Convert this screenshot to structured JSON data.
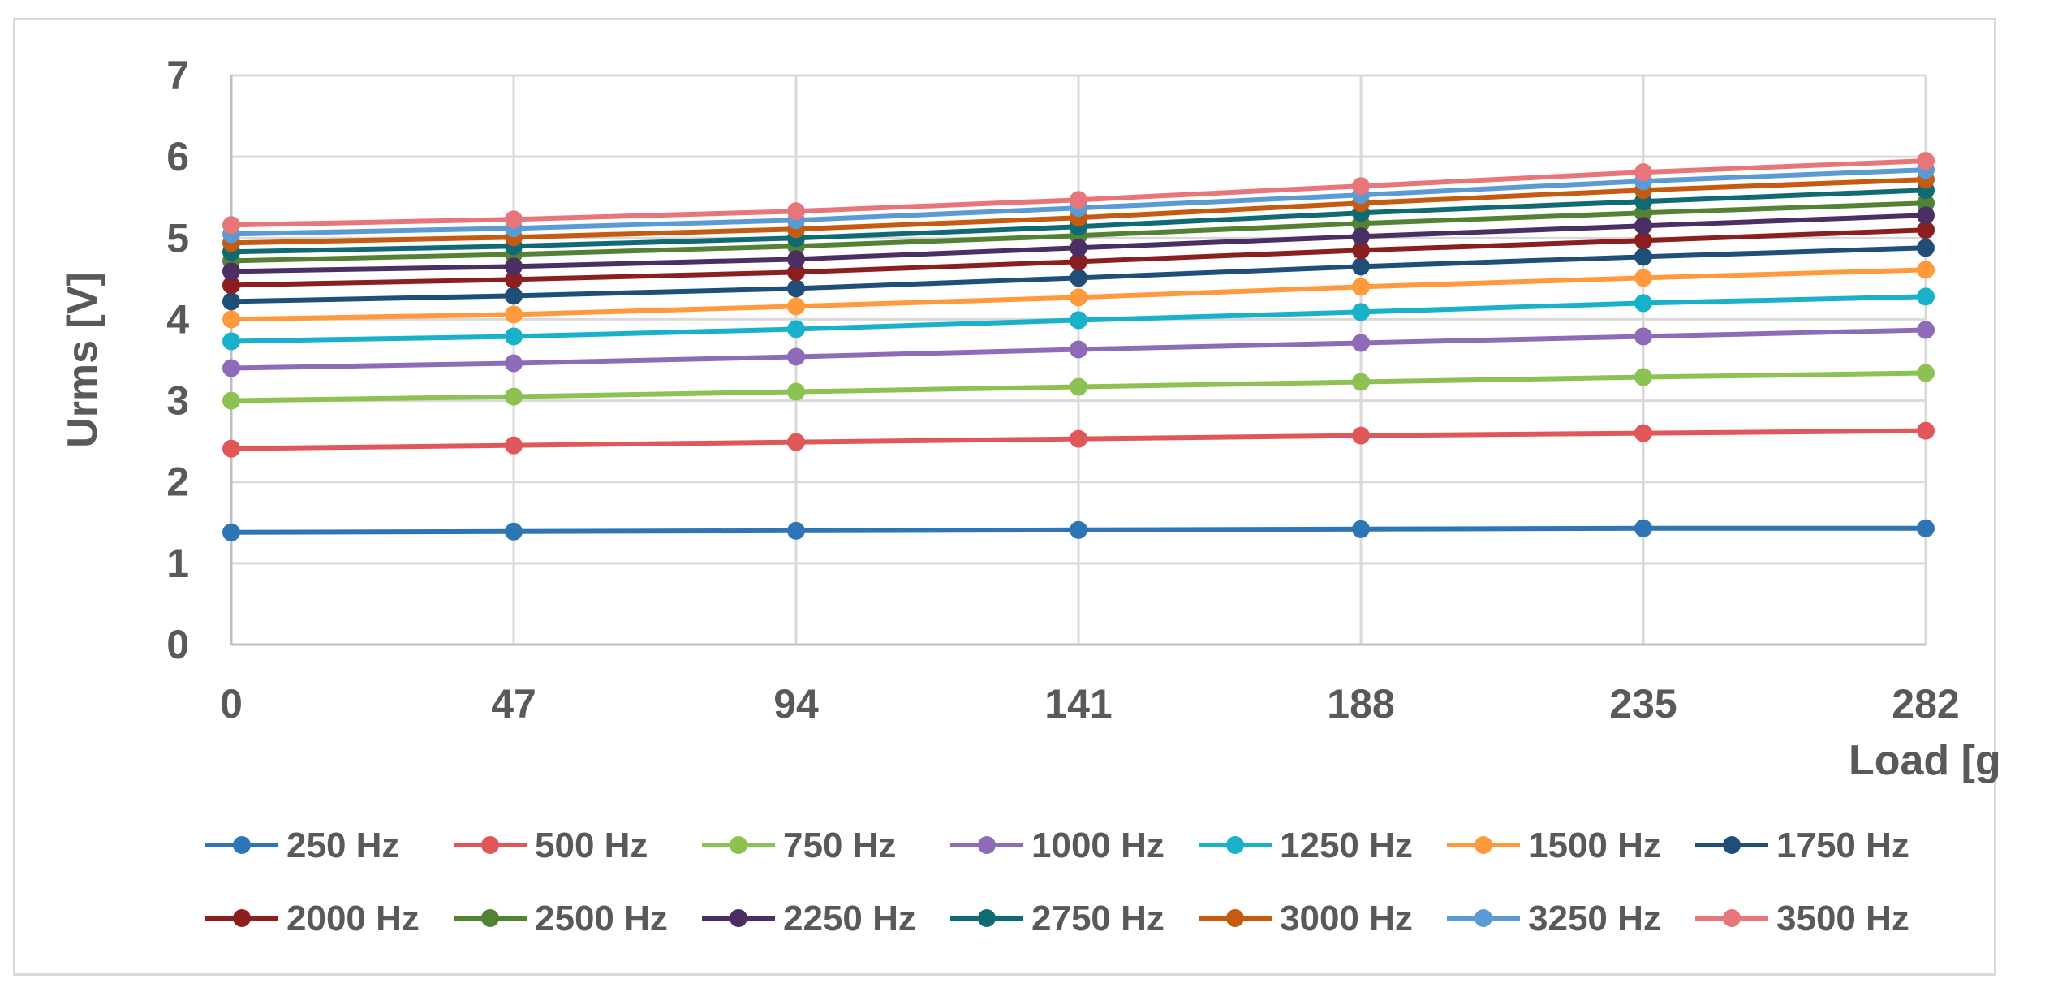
{
  "chart_data": {
    "type": "line",
    "title": "",
    "xlabel": "Load [g]",
    "ylabel": "Urms [V]",
    "categories": [
      "0",
      "47",
      "94",
      "141",
      "188",
      "235",
      "282"
    ],
    "ylim": [
      0,
      7
    ],
    "yticks": [
      "0",
      "1",
      "2",
      "3",
      "4",
      "5",
      "6",
      "7"
    ],
    "grid": true,
    "legend_position": "bottom",
    "series": [
      {
        "name": "250 Hz",
        "color": "#2E75B6",
        "values": [
          1.38,
          1.39,
          1.4,
          1.41,
          1.42,
          1.43,
          1.43
        ]
      },
      {
        "name": "500 Hz",
        "color": "#E15759",
        "values": [
          2.41,
          2.45,
          2.49,
          2.53,
          2.57,
          2.6,
          2.63
        ]
      },
      {
        "name": "750 Hz",
        "color": "#8DC152",
        "values": [
          3.0,
          3.05,
          3.11,
          3.17,
          3.23,
          3.29,
          3.34
        ]
      },
      {
        "name": "1000 Hz",
        "color": "#8E6BB8",
        "values": [
          3.4,
          3.46,
          3.54,
          3.63,
          3.71,
          3.79,
          3.87
        ]
      },
      {
        "name": "1250 Hz",
        "color": "#17B2C9",
        "values": [
          3.73,
          3.79,
          3.88,
          3.99,
          4.09,
          4.2,
          4.28
        ]
      },
      {
        "name": "1500 Hz",
        "color": "#FF9A3C",
        "values": [
          4.0,
          4.06,
          4.16,
          4.27,
          4.4,
          4.51,
          4.61
        ]
      },
      {
        "name": "1750 Hz",
        "color": "#1F4E79",
        "values": [
          4.22,
          4.29,
          4.38,
          4.51,
          4.65,
          4.77,
          4.88
        ]
      },
      {
        "name": "2000 Hz",
        "color": "#8B1E1E",
        "values": [
          4.42,
          4.49,
          4.58,
          4.71,
          4.85,
          4.97,
          5.1
        ]
      },
      {
        "name": "2500 Hz",
        "color": "#548235",
        "values": [
          4.72,
          4.8,
          4.9,
          5.03,
          5.18,
          5.31,
          5.43
        ]
      },
      {
        "name": "2250 Hz",
        "color": "#4B2E63",
        "values": [
          4.59,
          4.65,
          4.74,
          4.88,
          5.02,
          5.15,
          5.28
        ]
      },
      {
        "name": "2750 Hz",
        "color": "#0F6A73",
        "values": [
          4.83,
          4.9,
          5.0,
          5.14,
          5.31,
          5.45,
          5.59
        ]
      },
      {
        "name": "3000 Hz",
        "color": "#C55A11",
        "values": [
          4.94,
          5.01,
          5.11,
          5.25,
          5.43,
          5.59,
          5.72
        ]
      },
      {
        "name": "3250 Hz",
        "color": "#5B9BD5",
        "values": [
          5.05,
          5.12,
          5.22,
          5.37,
          5.53,
          5.7,
          5.84
        ]
      },
      {
        "name": "3500 Hz",
        "color": "#E8757A",
        "values": [
          5.16,
          5.23,
          5.33,
          5.47,
          5.64,
          5.81,
          5.95
        ]
      }
    ]
  }
}
